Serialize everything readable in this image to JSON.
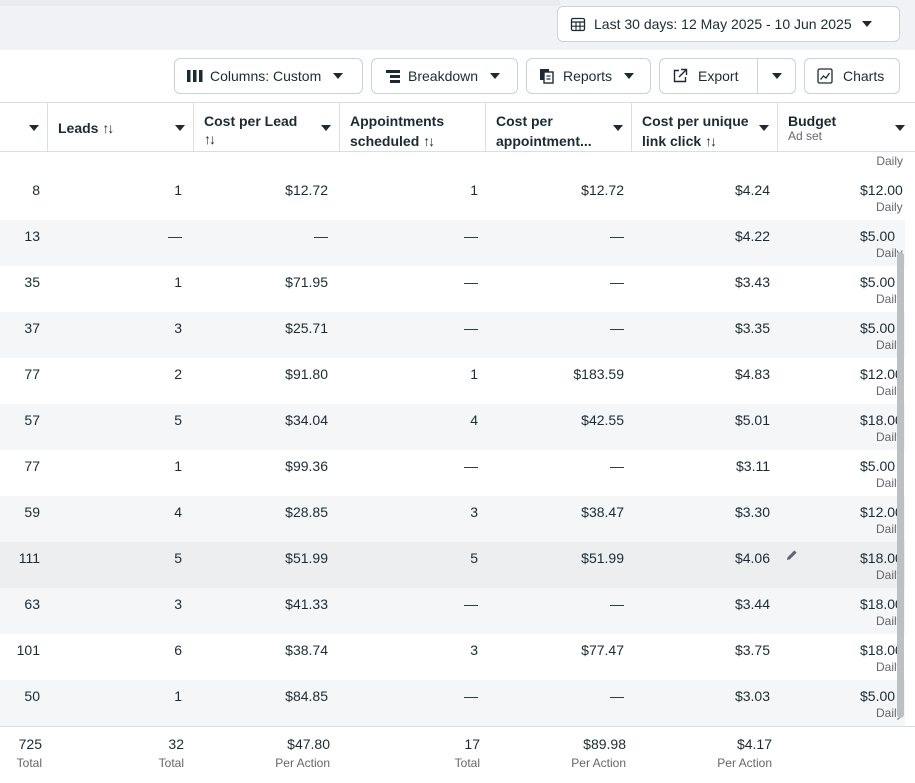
{
  "date_range": {
    "label": "Last 30 days: 12 May 2025 - 10 Jun 2025"
  },
  "toolbar": {
    "columns_label": "Columns: Custom",
    "breakdown_label": "Breakdown",
    "reports_label": "Reports",
    "export_label": "Export",
    "charts_label": "Charts"
  },
  "columns": [
    {
      "key": "c0",
      "title": "",
      "subtitle": ""
    },
    {
      "key": "leads",
      "title": "Leads",
      "sort": "↑↓"
    },
    {
      "key": "cpl",
      "title": "Cost per Lead",
      "title2": "↑↓"
    },
    {
      "key": "appts",
      "title": "Appointments",
      "title2": "scheduled",
      "sort": "↑↓"
    },
    {
      "key": "cpa",
      "title": "Cost per",
      "title2": "appointment..."
    },
    {
      "key": "cpulc",
      "title": "Cost per unique",
      "title2": "link click",
      "sort": "↑↓"
    },
    {
      "key": "budget",
      "title": "Budget",
      "subtitle": "Ad set"
    }
  ],
  "partial_top_row": {
    "budget_sub": "Daily"
  },
  "rows": [
    {
      "c0": "8",
      "leads": "1",
      "cpl": "$12.72",
      "appts": "1",
      "cpa": "$12.72",
      "cpulc": "$4.24",
      "budget": "$12.00",
      "budget_sub": "Daily"
    },
    {
      "c0": "13",
      "leads": "—",
      "cpl": "—",
      "appts": "—",
      "cpa": "—",
      "cpulc": "$4.22",
      "budget": "$5.00",
      "budget_sub": "Daily"
    },
    {
      "c0": "35",
      "leads": "1",
      "cpl": "$71.95",
      "appts": "—",
      "cpa": "—",
      "cpulc": "$3.43",
      "budget": "$5.00",
      "budget_sub": "Daily"
    },
    {
      "c0": "37",
      "leads": "3",
      "cpl": "$25.71",
      "appts": "—",
      "cpa": "—",
      "cpulc": "$3.35",
      "budget": "$5.00",
      "budget_sub": "Daily"
    },
    {
      "c0": "77",
      "leads": "2",
      "cpl": "$91.80",
      "appts": "1",
      "cpa": "$183.59",
      "cpulc": "$4.83",
      "budget": "$12.00",
      "budget_sub": "Daily"
    },
    {
      "c0": "57",
      "leads": "5",
      "cpl": "$34.04",
      "appts": "4",
      "cpa": "$42.55",
      "cpulc": "$5.01",
      "budget": "$18.00",
      "budget_sub": "Daily"
    },
    {
      "c0": "77",
      "leads": "1",
      "cpl": "$99.36",
      "appts": "—",
      "cpa": "—",
      "cpulc": "$3.11",
      "budget": "$5.00",
      "budget_sub": "Daily"
    },
    {
      "c0": "59",
      "leads": "4",
      "cpl": "$28.85",
      "appts": "3",
      "cpa": "$38.47",
      "cpulc": "$3.30",
      "budget": "$12.00",
      "budget_sub": "Daily"
    },
    {
      "c0": "111",
      "leads": "5",
      "cpl": "$51.99",
      "appts": "5",
      "cpa": "$51.99",
      "cpulc": "$4.06",
      "budget": "$18.00",
      "budget_sub": "Daily"
    },
    {
      "c0": "63",
      "leads": "3",
      "cpl": "$41.33",
      "appts": "—",
      "cpa": "—",
      "cpulc": "$3.44",
      "budget": "$18.00",
      "budget_sub": "Daily"
    },
    {
      "c0": "101",
      "leads": "6",
      "cpl": "$38.74",
      "appts": "3",
      "cpa": "$77.47",
      "cpulc": "$3.75",
      "budget": "$18.00",
      "budget_sub": "Daily"
    },
    {
      "c0": "50",
      "leads": "1",
      "cpl": "$84.85",
      "appts": "—",
      "cpa": "—",
      "cpulc": "$3.03",
      "budget": "$5.00",
      "budget_sub": "Daily"
    }
  ],
  "totals": [
    {
      "key": "c0",
      "value": "725",
      "label": "Total"
    },
    {
      "key": "leads",
      "value": "32",
      "label": "Total"
    },
    {
      "key": "cpl",
      "value": "$47.80",
      "label": "Per Action"
    },
    {
      "key": "appts",
      "value": "17",
      "label": "Total"
    },
    {
      "key": "cpa",
      "value": "$89.98",
      "label": "Per Action"
    },
    {
      "key": "cpulc",
      "value": "$4.17",
      "label": "Per Action"
    }
  ],
  "icons": {
    "calendar": "calendar-icon",
    "columns": "columns-icon",
    "breakdown": "breakdown-icon",
    "reports": "reports-icon",
    "export": "export-icon",
    "charts": "charts-icon",
    "edit": "pencil-icon"
  },
  "colors": {
    "border": "#cbd2d9",
    "text": "#1c2b33",
    "muted": "#65676b",
    "stripe": "#f5f6f7"
  }
}
